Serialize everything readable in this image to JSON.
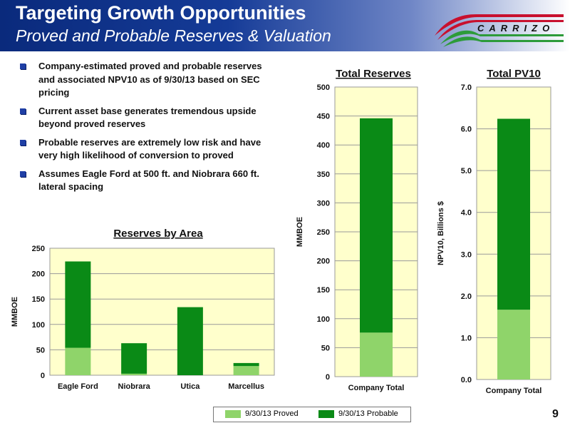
{
  "header": {
    "title": "Targeting Growth Opportunities",
    "subtitle": "Proved and Probable Reserves & Valuation",
    "logo_text": "CARRIZO"
  },
  "bullets": [
    "Company-estimated proved and probable reserves and associated NPV10 as of 9/30/13 based on SEC pricing",
    "Current asset base generates tremendous upside beyond proved reserves",
    "Probable reserves are extremely low risk and have very high likelihood of conversion to proved",
    "Assumes Eagle Ford at 500 ft. and Niobrara 660 ft. lateral spacing"
  ],
  "legend": {
    "proved": "9/30/13 Proved",
    "probable": "9/30/13 Probable"
  },
  "page_number": "9",
  "colors": {
    "proved": "#8fd46a",
    "probable": "#0a8a16",
    "plot_bg": "#ffffcc",
    "header_dark": "#0a2a7c"
  },
  "chart_data": [
    {
      "type": "bar",
      "stacked": true,
      "title": "Reserves by Area",
      "ylabel": "MMBOE",
      "xlabel": "",
      "categories": [
        "Eagle Ford",
        "Niobrara",
        "Utica",
        "Marcellus"
      ],
      "series": [
        {
          "name": "9/30/13 Proved",
          "values": [
            54,
            3,
            0,
            18
          ]
        },
        {
          "name": "9/30/13 Probable",
          "values": [
            170,
            60,
            134,
            6
          ]
        }
      ],
      "ylim": [
        0,
        250
      ],
      "yticks": [
        "0",
        "50",
        "100",
        "150",
        "200",
        "250"
      ],
      "grid": true
    },
    {
      "type": "bar",
      "stacked": true,
      "title": "Total Reserves",
      "ylabel": "MMBOE",
      "xlabel": "",
      "categories": [
        "Company Total"
      ],
      "series": [
        {
          "name": "9/30/13 Proved",
          "values": [
            76
          ]
        },
        {
          "name": "9/30/13 Probable",
          "values": [
            370
          ]
        }
      ],
      "ylim": [
        0,
        500
      ],
      "yticks": [
        "0",
        "50",
        "100",
        "150",
        "200",
        "250",
        "300",
        "350",
        "400",
        "450",
        "500"
      ],
      "grid": true
    },
    {
      "type": "bar",
      "stacked": true,
      "title": "Total PV10",
      "ylabel": "NPV10, Billions $",
      "xlabel": "",
      "categories": [
        "Company Total"
      ],
      "series": [
        {
          "name": "9/30/13 Proved",
          "values": [
            1.67
          ]
        },
        {
          "name": "9/30/13 Probable",
          "values": [
            4.57
          ]
        }
      ],
      "ylim": [
        0,
        7
      ],
      "yticks": [
        "0.0",
        "1.0",
        "2.0",
        "3.0",
        "4.0",
        "5.0",
        "6.0",
        "7.0"
      ],
      "grid": true
    }
  ]
}
